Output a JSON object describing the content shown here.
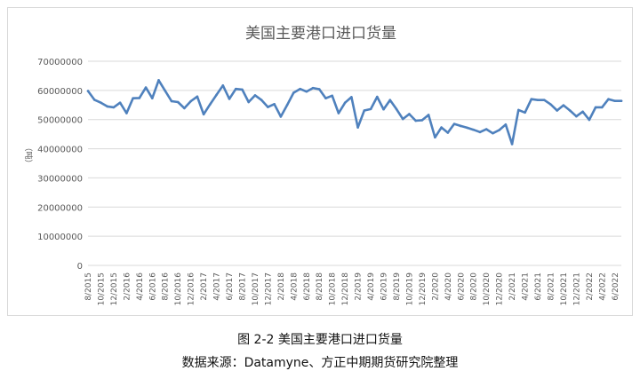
{
  "chart_data": {
    "type": "line",
    "title": "美国主要港口进口货量",
    "ylabel": "（吨）",
    "xlabel": "",
    "ylim": [
      0,
      70000000
    ],
    "yticks": [
      0,
      10000000,
      20000000,
      30000000,
      40000000,
      50000000,
      60000000,
      70000000
    ],
    "ytick_labels": [
      "0",
      "10000000",
      "20000000",
      "30000000",
      "40000000",
      "50000000",
      "60000000",
      "70000000"
    ],
    "grid": true,
    "legend": "none",
    "series_color": "#4f81bd",
    "categories": [
      "8/2015",
      "9/2015",
      "10/2015",
      "11/2015",
      "12/2015",
      "1/2016",
      "2/2016",
      "3/2016",
      "4/2016",
      "5/2016",
      "6/2016",
      "7/2016",
      "8/2016",
      "9/2016",
      "10/2016",
      "11/2016",
      "12/2016",
      "1/2017",
      "2/2017",
      "3/2017",
      "4/2017",
      "5/2017",
      "6/2017",
      "7/2017",
      "8/2017",
      "9/2017",
      "10/2017",
      "11/2017",
      "12/2017",
      "1/2018",
      "2/2018",
      "3/2018",
      "4/2018",
      "5/2018",
      "6/2018",
      "7/2018",
      "8/2018",
      "9/2018",
      "10/2018",
      "11/2018",
      "12/2018",
      "1/2019",
      "2/2019",
      "3/2019",
      "4/2019",
      "5/2019",
      "6/2019",
      "7/2019",
      "8/2019",
      "9/2019",
      "10/2019",
      "11/2019",
      "12/2019",
      "1/2020",
      "2/2020",
      "3/2020",
      "4/2020",
      "5/2020",
      "6/2020",
      "7/2020",
      "8/2020",
      "9/2020",
      "10/2020",
      "11/2020",
      "12/2020",
      "1/2021",
      "2/2021",
      "3/2021",
      "4/2021",
      "5/2021",
      "6/2021",
      "7/2021",
      "8/2021",
      "9/2021",
      "10/2021",
      "11/2021",
      "12/2021",
      "1/2022",
      "2/2022",
      "3/2022",
      "4/2022",
      "5/2022",
      "6/2022",
      "7/2022"
    ],
    "tick_labels": [
      "8/2015",
      "10/2015",
      "12/2015",
      "2/2016",
      "4/2016",
      "6/2016",
      "8/2016",
      "10/2016",
      "12/2016",
      "2/2017",
      "4/2017",
      "6/2017",
      "8/2017",
      "10/2017",
      "12/2017",
      "2/2018",
      "4/2018",
      "6/2018",
      "8/2018",
      "10/2018",
      "12/2018",
      "2/2019",
      "4/2019",
      "6/2019",
      "8/2019",
      "10/2019",
      "12/2019",
      "2/2020",
      "4/2020",
      "6/2020",
      "8/2020",
      "10/2020",
      "12/2020",
      "2/2021",
      "4/2021",
      "6/2021",
      "8/2021",
      "10/2021",
      "12/2021",
      "2/2022",
      "4/2022",
      "6/2022"
    ],
    "values": [
      59800000,
      56800000,
      55800000,
      54500000,
      54200000,
      55800000,
      52200000,
      57300000,
      57400000,
      61000000,
      57300000,
      63500000,
      59900000,
      56300000,
      56000000,
      53900000,
      56300000,
      57900000,
      51800000,
      55200000,
      58500000,
      61700000,
      57100000,
      60500000,
      60300000,
      56000000,
      58300000,
      56700000,
      54300000,
      55300000,
      51000000,
      55000000,
      59200000,
      60500000,
      59600000,
      60800000,
      60400000,
      57300000,
      58200000,
      52200000,
      55800000,
      57700000,
      47300000,
      53100000,
      53600000,
      57800000,
      53500000,
      56700000,
      53600000,
      50200000,
      51900000,
      49600000,
      49800000,
      51600000,
      43900000,
      47300000,
      45500000,
      48500000,
      47800000,
      47200000,
      46500000,
      45700000,
      46700000,
      45300000,
      46400000,
      48300000,
      41600000,
      53300000,
      52400000,
      57000000,
      56700000,
      56700000,
      55200000,
      53100000,
      54900000,
      53100000,
      51100000,
      52700000,
      49900000,
      54200000,
      54200000,
      57000000,
      56400000,
      56400000
    ]
  },
  "captions": {
    "figure": "图 2-2 美国主要港口进口货量",
    "source": "数据来源：Datamyne、方正中期期货研究院整理"
  }
}
